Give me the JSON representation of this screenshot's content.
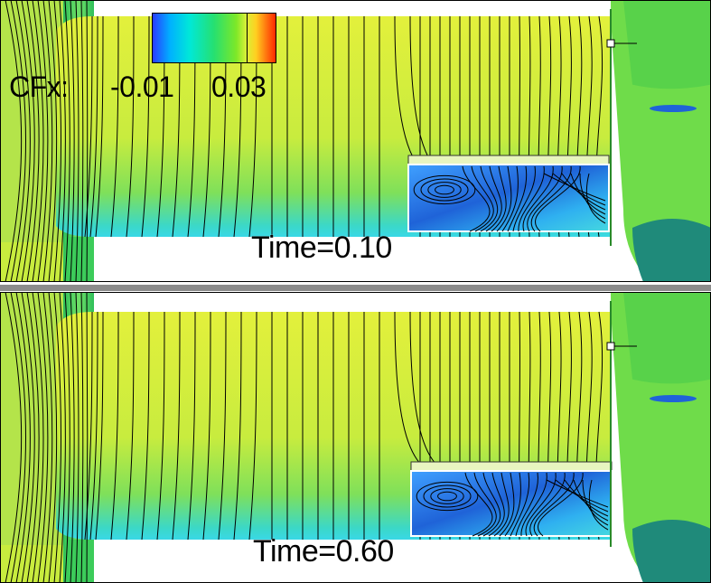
{
  "colorbar": {
    "variable_label": "CFx:",
    "tick_min": "-0.01",
    "tick_max": "0.03"
  },
  "panels": [
    {
      "time_label": "Time=0.10"
    },
    {
      "time_label": "Time=0.60"
    }
  ],
  "colors": {
    "surface_yellow": "#d9ee3a",
    "surface_green": "#5ed46a",
    "surface_blue": "#1f63d8",
    "cyan": "#39d8e6",
    "dark_teal": "#1f8a7a",
    "streamline": "#000000",
    "divider": "#8c8c8c"
  }
}
